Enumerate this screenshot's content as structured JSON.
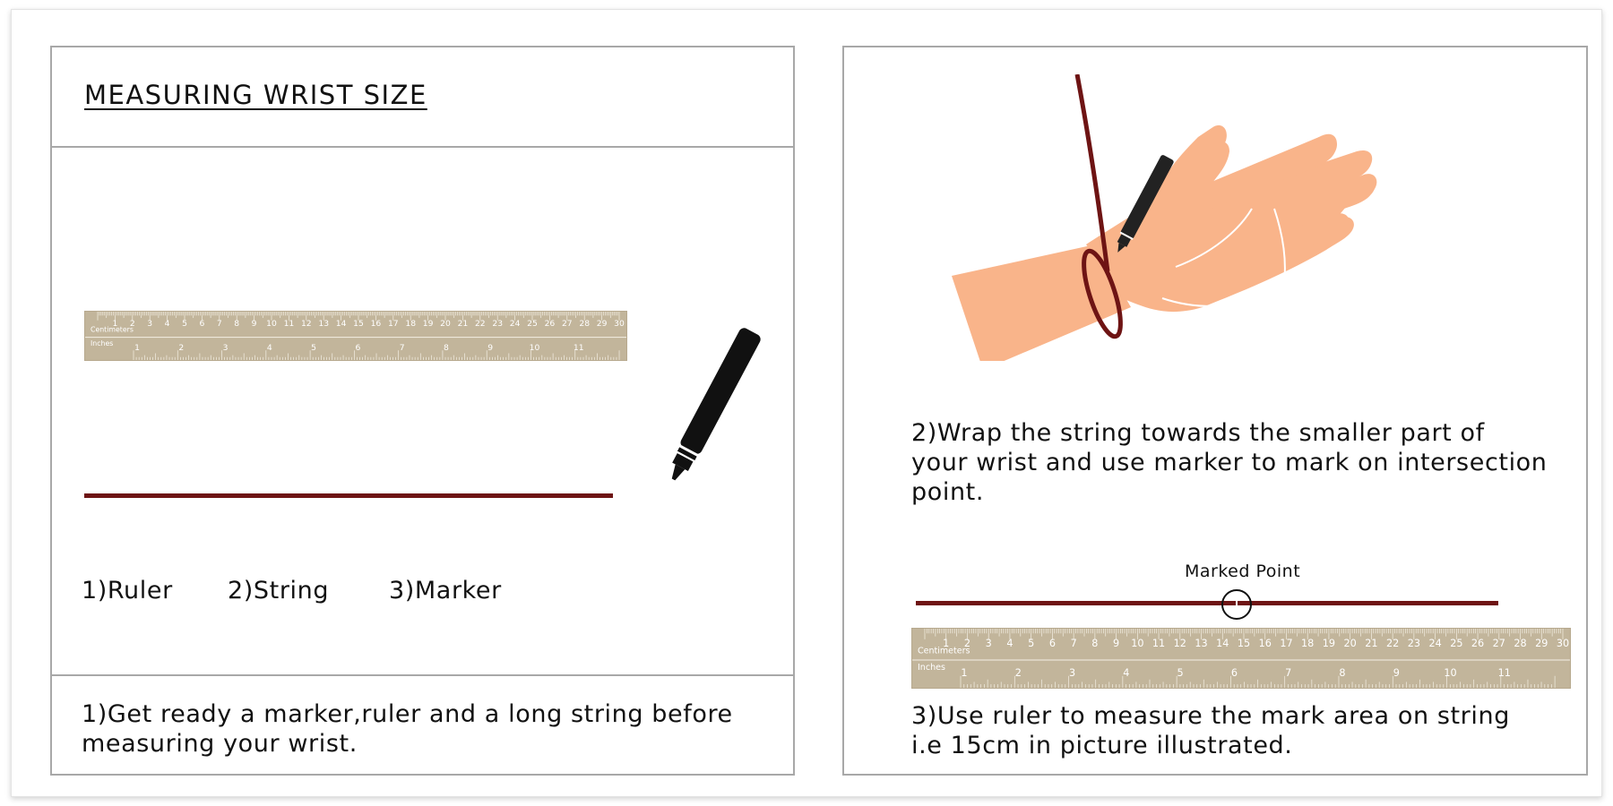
{
  "title": "MEASURING WRIST SIZE",
  "materials": [
    "1)Ruler",
    "2)String",
    "3)Marker"
  ],
  "step1": "1)Get ready a marker,ruler and a long string before measuring your wrist.",
  "step1_lines": [
    "1)Get ready a marker,ruler and a long string before",
    "measuring your wrist."
  ],
  "step2_lines": [
    "2)Wrap the string towards the smaller part of",
    "your wrist and use marker to mark on intersection",
    "point."
  ],
  "marked_point_label": "Marked Point",
  "step3_lines": [
    "3)Use ruler to measure the mark area on string",
    "i.e 15cm in picture illustrated."
  ],
  "ruler": {
    "cm_label": "Centimeters",
    "inch_label": "Inches",
    "cm_max": 30,
    "inch_max": 11
  },
  "colors": {
    "string": "#6e1414",
    "ruler": "#c2b59b",
    "skin": "#f9b48a",
    "marker": "#111111"
  },
  "icons": [
    "ruler-icon",
    "string-icon",
    "marker-icon",
    "hand-icon",
    "marked-point-circle-icon"
  ]
}
